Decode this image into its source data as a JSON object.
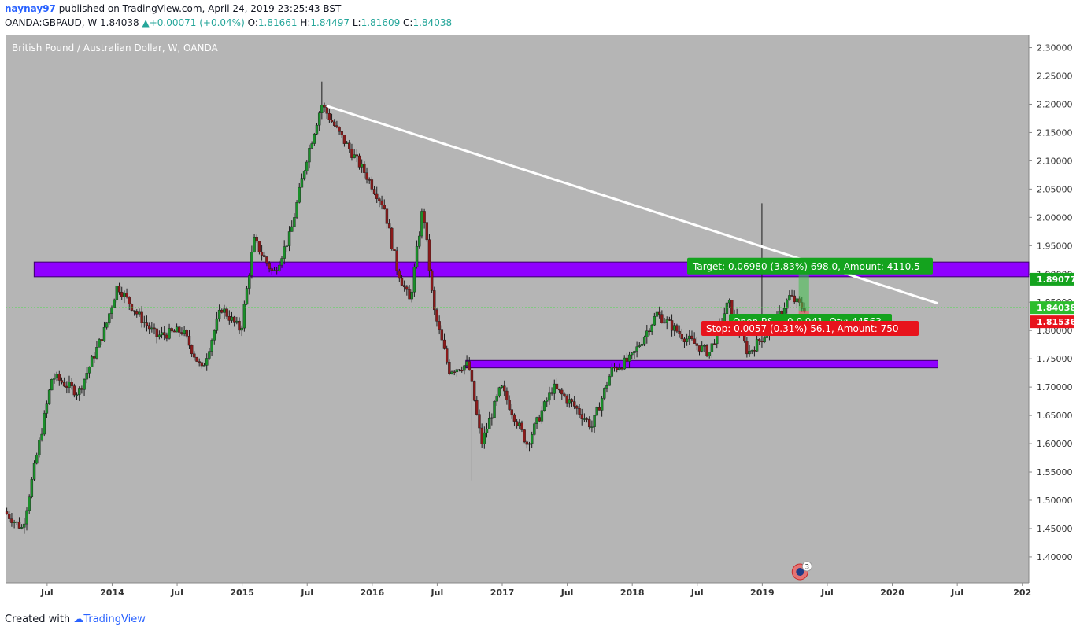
{
  "header": {
    "author": "naynay97",
    "published": "published on TradingView.com, April 24, 2019 23:25:43 BST",
    "symbol": "OANDA:GBPAUD, W",
    "last": "1.84038",
    "change": "+0.00071 (+0.04%)",
    "o_label": "O:",
    "o": "1.81661",
    "h_label": "H:",
    "h": "1.84497",
    "l_label": "L:",
    "l": "1.81609",
    "c_label": "C:",
    "c": "1.84038"
  },
  "footer": {
    "created_with": "Created with",
    "brand": "TradingView"
  },
  "colors": {
    "background": "#b5b5b5",
    "bull": "#1a8f2a",
    "bear": "#8b1a1a",
    "zone": "#8f00ff",
    "trendline": "#ffffff",
    "target": "#14a31e",
    "stop": "#e8131c"
  },
  "chart_data": {
    "type": "candlestick",
    "title": "British Pound / Australian Dollar, W, OANDA",
    "y_ticks": [
      "2.30000",
      "2.25000",
      "2.20000",
      "2.15000",
      "2.10000",
      "2.05000",
      "2.00000",
      "1.95000",
      "1.90000",
      "1.85000",
      "1.80000",
      "1.75000",
      "1.70000",
      "1.65000",
      "1.60000",
      "1.55000",
      "1.50000",
      "1.45000",
      "1.40000"
    ],
    "ylim": [
      1.354,
      2.323
    ],
    "x_ticks": [
      {
        "label": "Jul",
        "t": 2013.5
      },
      {
        "label": "2014",
        "t": 2014.0
      },
      {
        "label": "Jul",
        "t": 2014.5
      },
      {
        "label": "2015",
        "t": 2015.0
      },
      {
        "label": "Jul",
        "t": 2015.5
      },
      {
        "label": "2016",
        "t": 2016.0
      },
      {
        "label": "Jul",
        "t": 2016.5
      },
      {
        "label": "2017",
        "t": 2017.0
      },
      {
        "label": "Jul",
        "t": 2017.5
      },
      {
        "label": "2018",
        "t": 2018.0
      },
      {
        "label": "Jul",
        "t": 2018.5
      },
      {
        "label": "2019",
        "t": 2019.0
      },
      {
        "label": "Jul",
        "t": 2019.5
      },
      {
        "label": "2020",
        "t": 2020.0
      },
      {
        "label": "Jul",
        "t": 2020.5
      },
      {
        "label": "202",
        "t": 2021.0
      }
    ],
    "xlim": [
      2013.18,
      2021.05
    ],
    "price_path": [
      [
        2013.18,
        1.48
      ],
      [
        2013.32,
        1.45
      ],
      [
        2013.55,
        1.72
      ],
      [
        2013.75,
        1.69
      ],
      [
        2013.95,
        1.8
      ],
      [
        2014.05,
        1.88
      ],
      [
        2014.2,
        1.83
      ],
      [
        2014.35,
        1.79
      ],
      [
        2014.55,
        1.8
      ],
      [
        2014.7,
        1.73
      ],
      [
        2014.85,
        1.84
      ],
      [
        2015.0,
        1.8
      ],
      [
        2015.1,
        1.96
      ],
      [
        2015.25,
        1.9
      ],
      [
        2015.38,
        1.97
      ],
      [
        2015.5,
        2.1
      ],
      [
        2015.62,
        2.2
      ],
      [
        2015.75,
        2.15
      ],
      [
        2015.95,
        2.08
      ],
      [
        2016.1,
        2.02
      ],
      [
        2016.2,
        1.91
      ],
      [
        2016.3,
        1.85
      ],
      [
        2016.4,
        2.02
      ],
      [
        2016.48,
        1.84
      ],
      [
        2016.6,
        1.73
      ],
      [
        2016.75,
        1.74
      ],
      [
        2016.85,
        1.6
      ],
      [
        2017.0,
        1.7
      ],
      [
        2017.2,
        1.6
      ],
      [
        2017.4,
        1.7
      ],
      [
        2017.55,
        1.67
      ],
      [
        2017.7,
        1.63
      ],
      [
        2017.85,
        1.73
      ],
      [
        2018.0,
        1.75
      ],
      [
        2018.2,
        1.83
      ],
      [
        2018.4,
        1.79
      ],
      [
        2018.6,
        1.76
      ],
      [
        2018.75,
        1.85
      ],
      [
        2018.9,
        1.76
      ],
      [
        2019.1,
        1.81
      ],
      [
        2019.22,
        1.86
      ],
      [
        2019.32,
        1.84
      ]
    ],
    "extreme_wicks": [
      {
        "t": 2015.6,
        "high": 2.24
      },
      {
        "t": 2016.75,
        "low": 1.535
      },
      {
        "t": 2018.98,
        "high": 2.025
      }
    ],
    "zones": [
      {
        "t_start": 2013.4,
        "t_end": 2021.05,
        "low": 1.895,
        "high": 1.921
      },
      {
        "t_start": 2016.72,
        "t_end": 2020.35,
        "low": 1.734,
        "high": 1.747
      }
    ],
    "trendline": {
      "t1": 2015.65,
      "p1": 2.197,
      "t2": 2020.35,
      "p2": 1.848
    },
    "horizontal_line": {
      "price": 1.84038
    },
    "position": {
      "entry": 1.835,
      "target": 1.9048,
      "stop": 1.8294,
      "t_start": 2019.28,
      "t_end": 2019.36,
      "target_label": "Target: 0.06980 (3.83%) 698.0, Amount: 4110.5",
      "open_label": "Open P&",
      "qty_label": "0.0 941, Qty: 44563",
      "stop_label": "Stop: 0.0057 (0.31%) 56.1, Amount: 750"
    },
    "price_labels": [
      {
        "value": "1.89077",
        "price": 1.89077,
        "color": "#14a31e"
      },
      {
        "value": "1.84038",
        "price": 1.84038,
        "color": "#2dbd2d"
      },
      {
        "value": "1.81536",
        "price": 1.81536,
        "color": "#e8131c"
      }
    ],
    "event_marker": {
      "count": "3",
      "t": 2019.29
    }
  }
}
